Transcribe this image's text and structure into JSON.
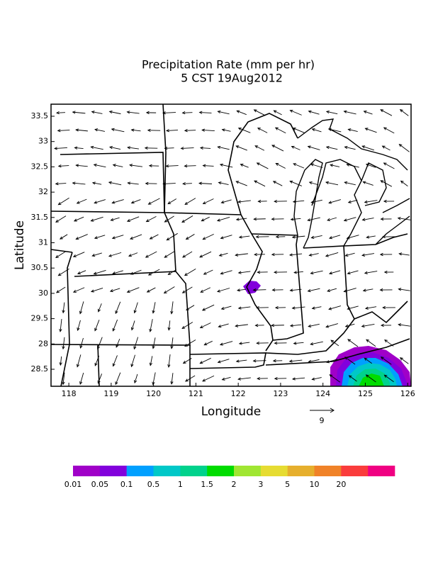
{
  "chart_data": {
    "type": "map",
    "title": "Precipitation Rate (mm per hr)",
    "subtitle": "5 CST 19Aug2012",
    "x_label": "Longitude",
    "y_label": "Latitude",
    "xlim": [
      117.58,
      126.08
    ],
    "xticks": [
      118,
      119,
      120,
      121,
      122,
      123,
      124,
      125,
      126
    ],
    "ylabels": [
      "33.5",
      "33",
      "32.5",
      "32",
      "31.5",
      "31",
      "30.5",
      "30",
      "29.5",
      "28",
      "28.5"
    ],
    "reference_vector_label": "9",
    "colorbar": {
      "colors": [
        "#a000c8",
        "#8200dc",
        "#00a0ff",
        "#00c8c8",
        "#00d28c",
        "#00dc00",
        "#a0e632",
        "#e6dc32",
        "#e6af2d",
        "#f08228",
        "#fa3c3c",
        "#f00082"
      ],
      "labels": [
        0.01,
        0.05,
        0.1,
        0.5,
        1,
        1.5,
        2,
        3,
        5,
        10,
        20
      ]
    }
  }
}
